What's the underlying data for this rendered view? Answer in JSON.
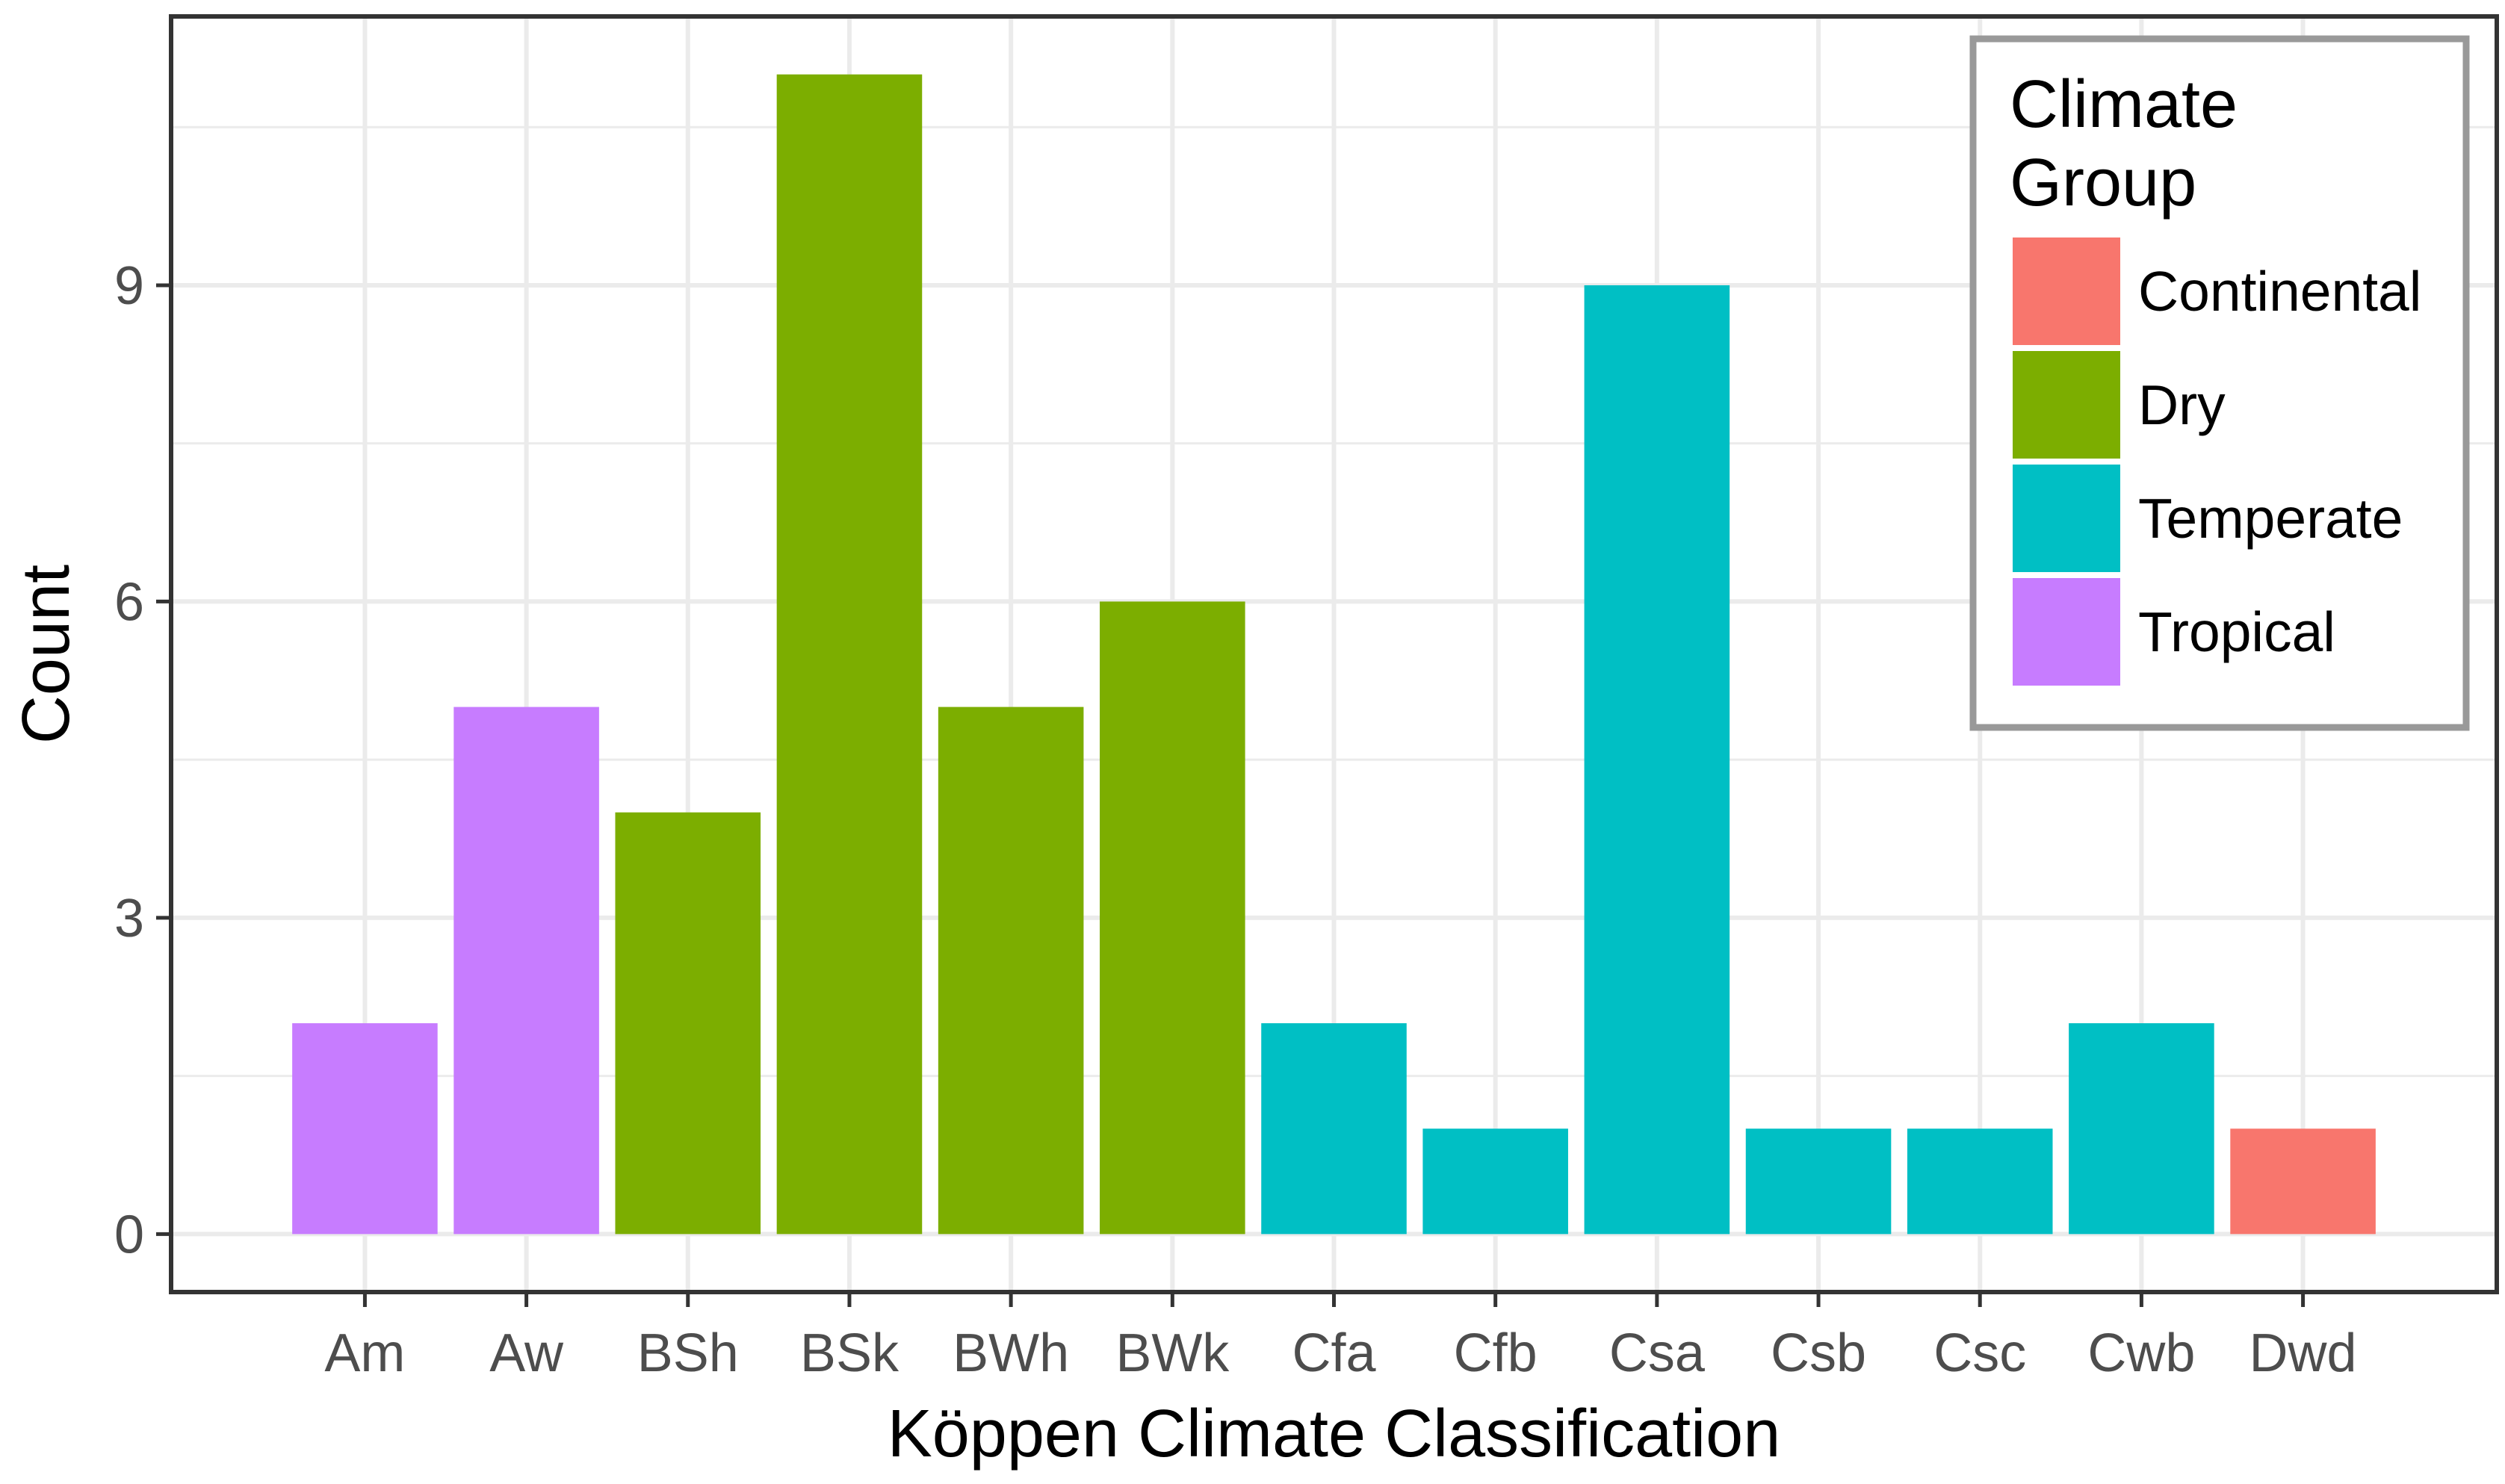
{
  "chart_data": {
    "type": "bar",
    "categories": [
      "Am",
      "Aw",
      "BSh",
      "BSk",
      "BWh",
      "BWk",
      "Cfa",
      "Cfb",
      "Csa",
      "Csb",
      "Csc",
      "Cwb",
      "Dwd"
    ],
    "values": [
      2,
      5,
      4,
      11,
      5,
      6,
      2,
      1,
      9,
      1,
      1,
      2,
      1
    ],
    "groups": [
      "Tropical",
      "Tropical",
      "Dry",
      "Dry",
      "Dry",
      "Dry",
      "Temperate",
      "Temperate",
      "Temperate",
      "Temperate",
      "Temperate",
      "Temperate",
      "Continental"
    ],
    "xlabel": "Köppen Climate Classification",
    "ylabel": "Count",
    "yticks": [
      0,
      3,
      6,
      9
    ],
    "ylim": [
      -0.55,
      11.55
    ],
    "grid": true,
    "legend": {
      "title_lines": [
        "Climate",
        "Group"
      ],
      "placement": "top-right",
      "entries": [
        {
          "label": "Continental",
          "color": "#F8766D"
        },
        {
          "label": "Dry",
          "color": "#7CAE00"
        },
        {
          "label": "Temperate",
          "color": "#00BFC4"
        },
        {
          "label": "Tropical",
          "color": "#C77CFF"
        }
      ]
    },
    "colors": {
      "Continental": "#F8766D",
      "Dry": "#7CAE00",
      "Temperate": "#00BFC4",
      "Tropical": "#C77CFF",
      "grid": "#ebebeb",
      "panel_border": "#333333",
      "legend_border": "#999999"
    }
  }
}
